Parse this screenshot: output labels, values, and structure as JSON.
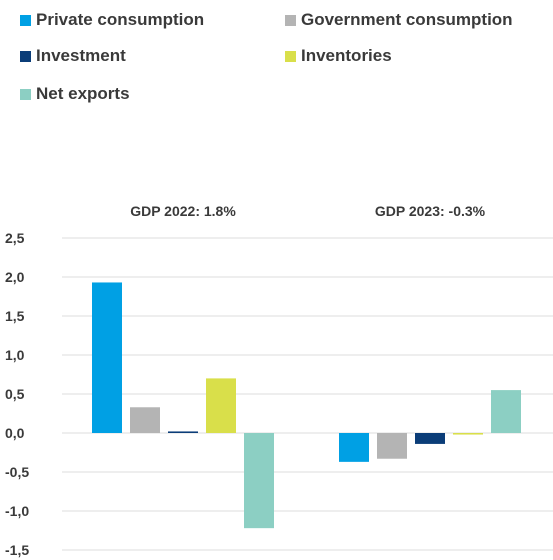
{
  "colors": {
    "private": "#00a0e4",
    "government": "#b4b4b4",
    "investment": "#0b3d78",
    "inventories": "#d9df4a",
    "net_exports": "#8ccfc3",
    "grid": "#dcdcdc"
  },
  "chart_data": {
    "type": "bar",
    "categories": [
      "GDP 2022: 1.8%",
      "GDP 2023: -0.3%"
    ],
    "series": [
      {
        "name": "Private consumption",
        "color_key": "private",
        "values": [
          1.93,
          -0.37
        ]
      },
      {
        "name": "Government consumption",
        "color_key": "government",
        "values": [
          0.33,
          -0.33
        ]
      },
      {
        "name": "Investment",
        "color_key": "investment",
        "values": [
          0.02,
          -0.14
        ]
      },
      {
        "name": "Inventories",
        "color_key": "inventories",
        "values": [
          0.7,
          -0.02
        ]
      },
      {
        "name": "Net exports",
        "color_key": "net_exports",
        "values": [
          -1.22,
          0.55
        ]
      }
    ],
    "y_ticks": [
      "2,5",
      "2,0",
      "1,5",
      "1,0",
      "0,5",
      "0,0",
      "-0,5",
      "-1,0",
      "-1,5"
    ],
    "ylim": [
      -1.5,
      2.5
    ],
    "grid": true,
    "legend_position": "top"
  }
}
